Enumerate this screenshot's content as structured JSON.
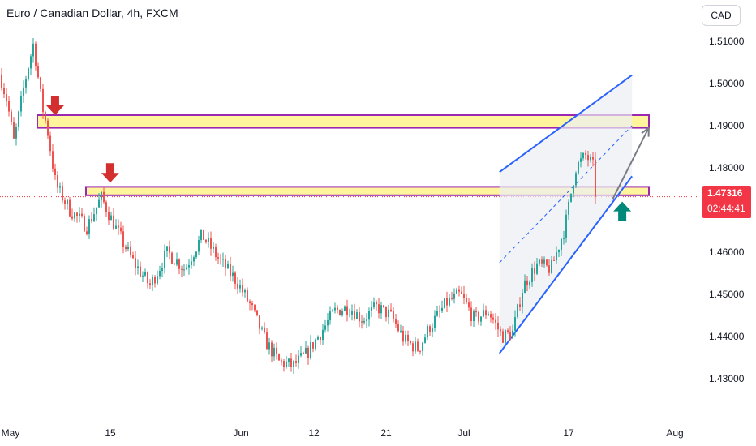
{
  "header": {
    "title": "Euro / Canadian Dollar, 4h, FXCM"
  },
  "currency_badge": "CAD",
  "last_price": {
    "value": "1.47316",
    "countdown": "02:44:41"
  },
  "colors": {
    "up": "#26a69a",
    "down": "#ef5350",
    "zone_fill": "#fff59d",
    "zone_border": "#9c27b0",
    "channel": "#2962ff",
    "arrow_down": "#d32f2f",
    "arrow_up": "#00897b",
    "projection": "#787b86",
    "last_price_line": "#f23645"
  },
  "chart_data": {
    "type": "candlestick",
    "title": "Euro / Canadian Dollar, 4h, FXCM",
    "x_ticks": [
      "May",
      "15",
      "Jun",
      "12",
      "21",
      "Jul",
      "17",
      "Aug"
    ],
    "y_ticks": [
      "1.51000",
      "1.50000",
      "1.49000",
      "1.48000",
      "1.46000",
      "1.45000",
      "1.44000",
      "1.43000"
    ],
    "ylim": [
      1.425,
      1.515
    ],
    "grid": false,
    "last_price": 1.47316,
    "resistance_zones": [
      {
        "low": 1.4895,
        "high": 1.4925
      },
      {
        "low": 1.4735,
        "high": 1.4755
      }
    ],
    "candle_path": [
      [
        0.0,
        1.502
      ],
      [
        0.01,
        1.496
      ],
      [
        0.02,
        1.486
      ],
      [
        0.035,
        1.5
      ],
      [
        0.048,
        1.5095
      ],
      [
        0.06,
        1.495
      ],
      [
        0.068,
        1.489
      ],
      [
        0.08,
        1.476
      ],
      [
        0.1,
        1.47
      ],
      [
        0.125,
        1.466
      ],
      [
        0.145,
        1.473
      ],
      [
        0.165,
        1.466
      ],
      [
        0.19,
        1.458
      ],
      [
        0.215,
        1.452
      ],
      [
        0.24,
        1.46
      ],
      [
        0.265,
        1.456
      ],
      [
        0.29,
        1.464
      ],
      [
        0.315,
        1.458
      ],
      [
        0.34,
        1.453
      ],
      [
        0.36,
        1.447
      ],
      [
        0.38,
        1.439
      ],
      [
        0.4,
        1.434
      ],
      [
        0.42,
        1.433
      ],
      [
        0.44,
        1.436
      ],
      [
        0.46,
        1.441
      ],
      [
        0.48,
        1.446
      ],
      [
        0.5,
        1.447
      ],
      [
        0.52,
        1.444
      ],
      [
        0.54,
        1.447
      ],
      [
        0.56,
        1.445
      ],
      [
        0.58,
        1.439
      ],
      [
        0.6,
        1.437
      ],
      [
        0.615,
        1.442
      ],
      [
        0.64,
        1.448
      ],
      [
        0.66,
        1.45
      ],
      [
        0.68,
        1.444
      ],
      [
        0.7,
        1.446
      ],
      [
        0.72,
        1.44
      ],
      [
        0.735,
        1.441
      ],
      [
        0.75,
        1.452
      ],
      [
        0.77,
        1.457
      ],
      [
        0.79,
        1.456
      ],
      [
        0.81,
        1.466
      ],
      [
        0.825,
        1.48
      ],
      [
        0.84,
        1.483
      ],
      [
        0.855,
        1.479
      ],
      [
        0.87,
        1.474
      ],
      [
        0.875,
        1.4735
      ]
    ],
    "annotations": [
      {
        "type": "arrow-down",
        "x_frac": 0.079,
        "y": 1.4925
      },
      {
        "type": "arrow-down",
        "x_frac": 0.158,
        "y": 1.4765
      },
      {
        "type": "arrow-up",
        "x_frac": 0.892,
        "y": 1.472
      },
      {
        "type": "projection-arrow",
        "from": [
          0.878,
          1.4725
        ],
        "to": [
          0.93,
          1.4895
        ]
      },
      {
        "type": "rising-channel",
        "upper": [
          [
            0.716,
            1.479
          ],
          [
            0.906,
            1.502
          ]
        ],
        "lower": [
          [
            0.716,
            1.436
          ],
          [
            0.906,
            1.478
          ]
        ]
      }
    ]
  }
}
